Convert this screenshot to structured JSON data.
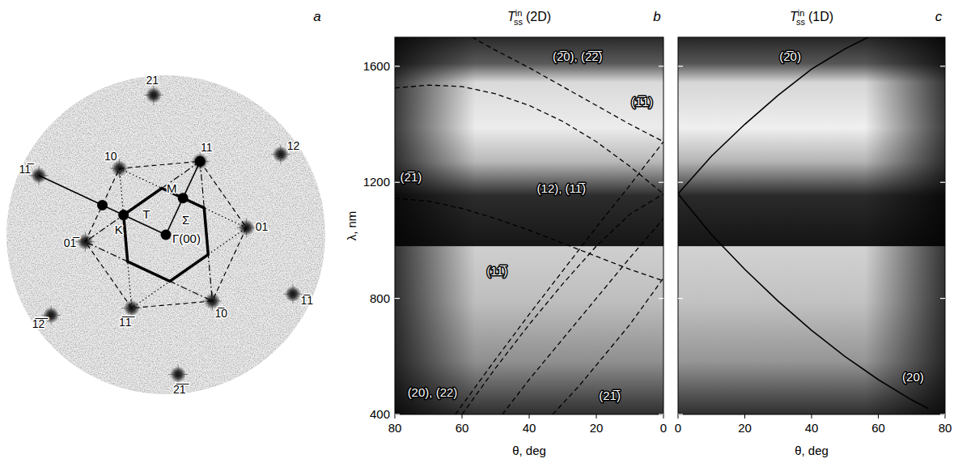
{
  "diagram": {
    "panel_label": "a",
    "spots": [
      "10",
      "11",
      "01",
      "1̅0",
      "1̅1̅",
      "01̅",
      "21",
      "12",
      "1̅1",
      "2̅1̅",
      "1̅2̅",
      "11̅"
    ],
    "points": [
      "Γ(00)",
      "M",
      "Σ",
      "T",
      "K"
    ]
  },
  "chart_data": [
    {
      "type": "line",
      "panel_label": "b",
      "title": {
        "main": "T",
        "sub": "ss",
        "sup": "in",
        "tail": "(2D)"
      },
      "x_label": "θ, deg",
      "y_label": "λ, nm",
      "xlim": [
        80,
        0
      ],
      "ylim": [
        400,
        1700
      ],
      "xticks": [
        80,
        60,
        40,
        20,
        0
      ],
      "yticks": [
        400,
        800,
        1200,
        1600
      ],
      "color": "#000000",
      "line_style": "dashed",
      "series": [
        {
          "name": "(2̅0), (2̅2̅)",
          "x": [
            57,
            50,
            40,
            30,
            20,
            10,
            0
          ],
          "values": [
            1700,
            1655,
            1595,
            1530,
            1465,
            1400,
            1340
          ]
        },
        {
          "name": "(1̅1)",
          "x": [
            80,
            70,
            60,
            50,
            40,
            30,
            20,
            10,
            0
          ],
          "values": [
            1525,
            1535,
            1530,
            1505,
            1465,
            1410,
            1340,
            1255,
            1160
          ]
        },
        {
          "name": "(2̅1)",
          "x": [
            80,
            70,
            60,
            50,
            40,
            30,
            20,
            10,
            0
          ],
          "values": [
            1145,
            1135,
            1110,
            1075,
            1035,
            990,
            945,
            900,
            860
          ]
        },
        {
          "name": "(12), (11̅)",
          "x": [
            62,
            50,
            40,
            30,
            20,
            10,
            0
          ],
          "values": [
            400,
            590,
            745,
            895,
            1045,
            1190,
            1340
          ]
        },
        {
          "name": "(11̅)",
          "x": [
            60,
            50,
            40,
            30,
            20,
            10,
            0
          ],
          "values": [
            400,
            560,
            710,
            850,
            980,
            1090,
            1160
          ]
        },
        {
          "name": "(20), (22)",
          "x": [
            48,
            40,
            30,
            20,
            10,
            0
          ],
          "values": [
            400,
            520,
            660,
            800,
            940,
            1075
          ]
        },
        {
          "name": "(21̅)",
          "x": [
            33,
            25,
            20,
            15,
            10,
            5,
            0
          ],
          "values": [
            400,
            500,
            570,
            640,
            710,
            790,
            870
          ]
        }
      ]
    },
    {
      "type": "line",
      "panel_label": "c",
      "title": {
        "main": "T",
        "sub": "ss",
        "sup": "in",
        "tail": "(1D)"
      },
      "x_label": "θ, deg",
      "xlim": [
        0,
        80
      ],
      "ylim": [
        400,
        1700
      ],
      "xticks": [
        0,
        20,
        40,
        60,
        80
      ],
      "yticks": [
        400,
        800,
        1200,
        1600
      ],
      "tick_labels": "x",
      "color": "#000000",
      "line_style": "solid",
      "series": [
        {
          "name": "(2̅0)",
          "x": [
            0,
            10,
            20,
            30,
            40,
            50,
            57
          ],
          "values": [
            1160,
            1290,
            1400,
            1500,
            1590,
            1660,
            1700
          ]
        },
        {
          "name": "(20)",
          "x": [
            0,
            10,
            20,
            30,
            40,
            50,
            60,
            70,
            75
          ],
          "values": [
            1160,
            1020,
            900,
            790,
            690,
            600,
            520,
            450,
            420
          ]
        }
      ]
    }
  ]
}
